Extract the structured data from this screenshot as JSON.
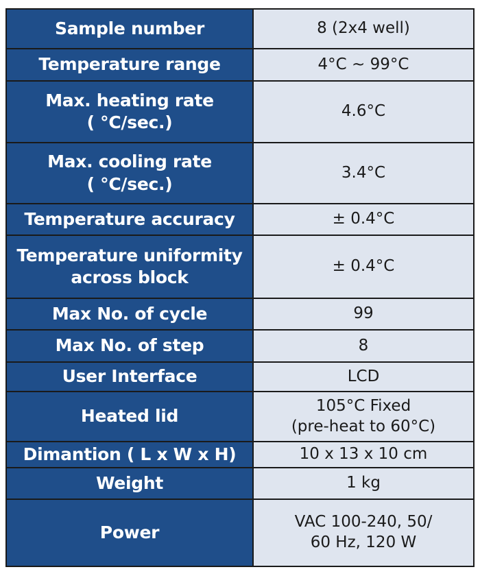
{
  "table": {
    "rows": [
      [
        "Sample number",
        "8 (2x4 well)"
      ],
      [
        "Temperature range",
        "4°C ~ 99°C"
      ],
      [
        "Max. heating rate\n( °C/sec.)",
        "4.6°C"
      ],
      [
        "Max. cooling rate\n( °C/sec.)",
        "3.4°C"
      ],
      [
        "Temperature accuracy",
        "± 0.4°C"
      ],
      [
        "Temperature uniformity\nacross block",
        "± 0.4°C"
      ],
      [
        "Max No. of cycle",
        "99"
      ],
      [
        "Max No. of step",
        "8"
      ],
      [
        "User Interface",
        "LCD"
      ],
      [
        "Heated lid",
        "105°C Fixed\n(pre-heat to 60°C)"
      ],
      [
        "Dimantion ( L x W x H)",
        "10 x 13 x 10 cm"
      ],
      [
        "Weight",
        "1 kg"
      ],
      [
        "Power",
        "VAC 100-240, 50/\n60 Hz, 120 W"
      ]
    ]
  }
}
